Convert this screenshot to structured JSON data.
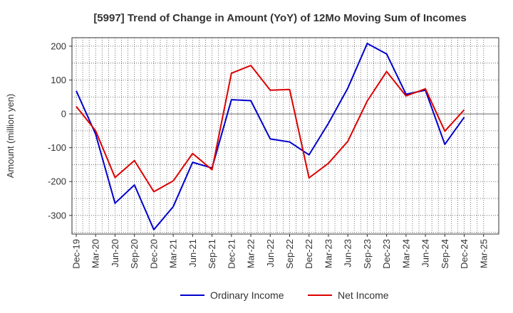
{
  "chart_data": {
    "type": "line",
    "title": "[5997]  Trend of Change in Amount (YoY) of 12Mo Moving Sum of Incomes",
    "xlabel": "",
    "ylabel": "Amount (million yen)",
    "ylim": [
      -355,
      225
    ],
    "yticks": [
      200,
      100,
      0,
      -100,
      -200,
      -300
    ],
    "ytick_labels": [
      "200",
      "100",
      "0",
      "-100",
      "-200",
      "-300"
    ],
    "x": [
      "Dec-19",
      "Mar-20",
      "Jun-20",
      "Sep-20",
      "Dec-20",
      "Mar-21",
      "Jun-21",
      "Sep-21",
      "Dec-21",
      "Mar-22",
      "Jun-22",
      "Sep-22",
      "Dec-22",
      "Mar-23",
      "Jun-23",
      "Sep-23",
      "Dec-23",
      "Mar-24",
      "Jun-24",
      "Sep-24",
      "Dec-24",
      "Mar-25"
    ],
    "x_tick_labels": [
      "Dec-19",
      "Mar-20",
      "Jun-20",
      "Sep-20",
      "Dec-20",
      "Mar-21",
      "Jun-21",
      "Sep-21",
      "Dec-21",
      "Mar-22",
      "Jun-22",
      "Sep-22",
      "Dec-22",
      "Mar-23",
      "Jun-23",
      "Sep-23",
      "Dec-23",
      "Mar-24",
      "Jun-24",
      "Sep-24",
      "Dec-24",
      "Mar-25"
    ],
    "grid": true,
    "legend_position": "bottom-center",
    "series": [
      {
        "name": "Ordinary Income",
        "color": "#0000cc",
        "values": [
          68,
          -60,
          -264,
          -210,
          -342,
          -274,
          -143,
          -160,
          42,
          39,
          -74,
          -83,
          -121,
          -28,
          76,
          208,
          177,
          58,
          70,
          -90,
          -10,
          null
        ]
      },
      {
        "name": "Net Income",
        "color": "#dd0000",
        "values": [
          22,
          -50,
          -188,
          -138,
          -230,
          -198,
          -117,
          -165,
          120,
          143,
          70,
          72,
          -189,
          -146,
          -81,
          38,
          125,
          53,
          74,
          -51,
          12,
          null
        ]
      }
    ]
  }
}
